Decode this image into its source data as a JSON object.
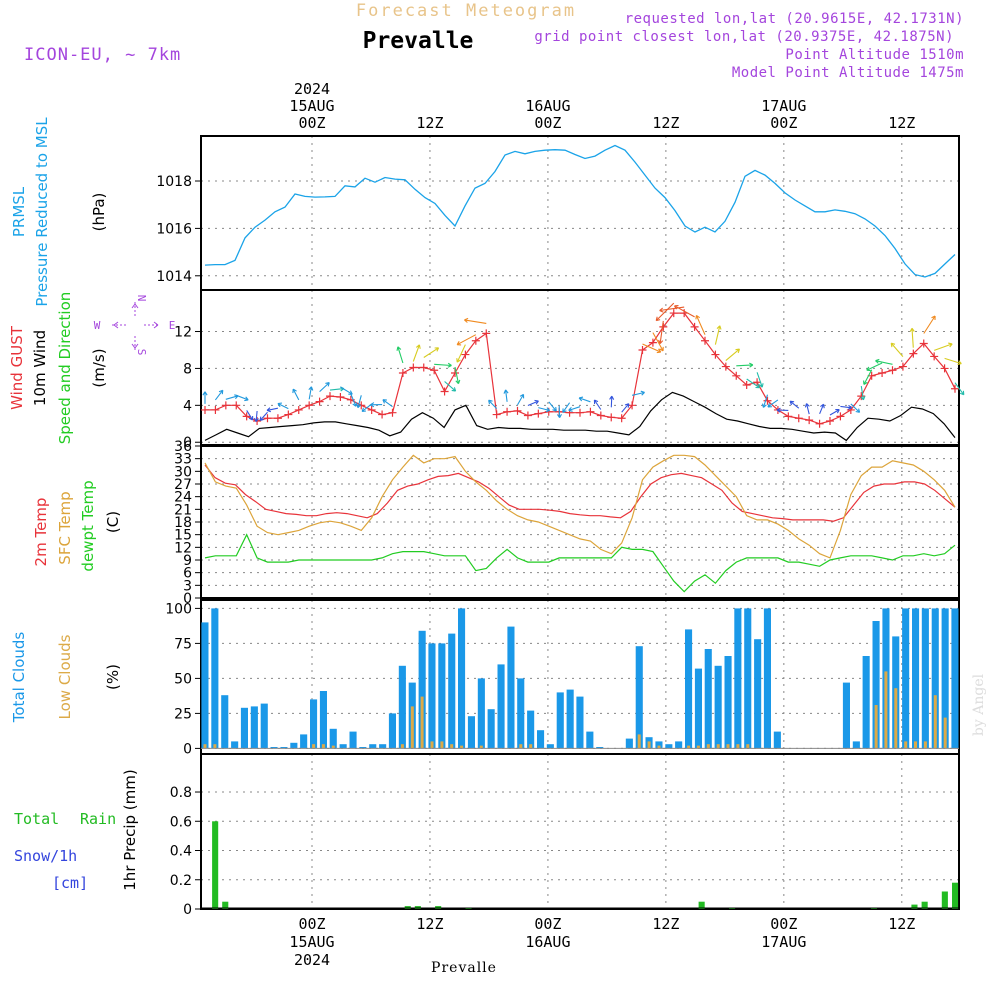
{
  "header": {
    "supertitle": "Forecast Meteogram",
    "place": "Prevalle",
    "model": "ICON-EU, ~ 7km",
    "requested": "requested lon,lat (20.9615E, 42.1731N)",
    "grid_point": "grid point closest lon,lat (20.9375E, 42.1875N)",
    "point_altitude": "Point Altitude 1510m",
    "model_altitude": "Model Point Altitude 1475m"
  },
  "footer": {
    "place": "Prevalle",
    "watermark": "by Angel"
  },
  "time_axis": {
    "top": [
      {
        "step": 0,
        "lines": [
          "2024",
          "15AUG",
          "00Z"
        ]
      },
      {
        "step": 12,
        "lines": [
          "12Z"
        ]
      },
      {
        "step": 24,
        "lines": [
          "16AUG",
          "00Z"
        ]
      },
      {
        "step": 36,
        "lines": [
          "12Z"
        ]
      },
      {
        "step": 48,
        "lines": [
          "17AUG",
          "00Z"
        ]
      },
      {
        "step": 60,
        "lines": [
          "12Z"
        ]
      }
    ],
    "bottom": [
      {
        "step": 0,
        "lines": [
          "00Z",
          "15AUG",
          "2024"
        ]
      },
      {
        "step": 12,
        "lines": [
          "12Z"
        ]
      },
      {
        "step": 24,
        "lines": [
          "00Z",
          "16AUG"
        ]
      },
      {
        "step": 36,
        "lines": [
          "12Z"
        ]
      },
      {
        "step": 48,
        "lines": [
          "00Z",
          "17AUG"
        ]
      },
      {
        "step": 60,
        "lines": [
          "12Z"
        ]
      }
    ]
  },
  "colors": {
    "pressure": "#1aa3e8",
    "gust": "#e8333a",
    "wind": "#000000",
    "sfc_temp": "#dca43a",
    "dewpoint": "#22cc22",
    "total_clouds": "#1a98e8",
    "low_clouds": "#dcaa48",
    "rain": "#22bb22",
    "snow": "#3344dd",
    "compass": "#a445dd",
    "title_gold": "#e8c48a",
    "watermark": "#dddddd"
  },
  "panels": {
    "pressure": {
      "labels": [
        "PRMSL",
        "Pressure Reduced to MSL",
        "(hPa)"
      ]
    },
    "wind": {
      "labels": [
        "Wind GUST",
        "10m Wind",
        "Speed and Direction",
        "(m/s)"
      ],
      "compass": [
        "N",
        "S",
        "W",
        "E"
      ]
    },
    "temp": {
      "labels": [
        "2m Temp",
        "SFC Temp",
        "dewpt Temp",
        "(C)"
      ]
    },
    "clouds": {
      "labels": [
        "Total Clouds",
        "Low Clouds",
        "(%)"
      ]
    },
    "precip": {
      "labels": [
        "Total",
        "Rain",
        "Snow/1h",
        "[cm]",
        "1hr Precip (mm)"
      ]
    }
  },
  "chart_data": [
    {
      "type": "line",
      "title": "PRMSL Pressure Reduced to MSL",
      "ylabel": "(hPa)",
      "x_start_hours_before_15AUG00Z": 9.5,
      "x_step_hours": 1,
      "ylim": [
        1013.4,
        1019.9
      ],
      "yticks": [
        1014,
        1016,
        1018
      ],
      "series": [
        {
          "name": "PRMSL",
          "values": [
            1014.45,
            1014.47,
            1014.47,
            1014.65,
            1015.6,
            1016.05,
            1016.35,
            1016.7,
            1016.9,
            1017.45,
            1017.35,
            1017.32,
            1017.33,
            1017.35,
            1017.8,
            1017.75,
            1018.12,
            1017.95,
            1018.15,
            1018.08,
            1018.05,
            1017.65,
            1017.3,
            1017.05,
            1016.55,
            1016.1,
            1016.95,
            1017.7,
            1017.9,
            1018.4,
            1019.1,
            1019.25,
            1019.15,
            1019.25,
            1019.3,
            1019.32,
            1019.3,
            1019.12,
            1018.95,
            1019.05,
            1019.3,
            1019.5,
            1019.3,
            1018.8,
            1018.25,
            1017.7,
            1017.3,
            1016.75,
            1016.1,
            1015.85,
            1016.05,
            1015.85,
            1016.3,
            1017.1,
            1018.2,
            1018.45,
            1018.25,
            1017.9,
            1017.5,
            1017.2,
            1016.95,
            1016.7,
            1016.7,
            1016.78,
            1016.72,
            1016.62,
            1016.4,
            1016.1,
            1015.7,
            1015.15,
            1014.5,
            1014.05,
            1013.95,
            1014.1,
            1014.5,
            1014.9
          ]
        }
      ]
    },
    {
      "type": "line",
      "title": "Wind GUST / 10m Wind Speed and Direction",
      "ylabel": "(m/s)",
      "ylim": [
        0,
        16
      ],
      "yticks": [
        0,
        4,
        8,
        12
      ],
      "series": [
        {
          "name": "Wind GUST",
          "values": [
            3.5,
            3.5,
            4.0,
            4.0,
            2.8,
            2.3,
            2.6,
            2.6,
            3.0,
            3.5,
            4.0,
            4.4,
            5.0,
            4.9,
            4.6,
            4.0,
            3.5,
            3.0,
            3.2,
            7.5,
            8.1,
            8.1,
            7.8,
            5.5,
            7.5,
            9.5,
            11.0,
            11.8,
            3.0,
            3.3,
            3.4,
            2.9,
            3.1,
            3.3,
            3.3,
            3.2,
            3.2,
            3.3,
            2.9,
            2.7,
            2.6,
            4.0,
            10.0,
            10.8,
            12.5,
            14.0,
            14.0,
            12.5,
            11.0,
            9.5,
            8.2,
            7.2,
            6.2,
            6.5,
            4.5,
            3.5,
            2.8,
            2.6,
            2.4,
            2.0,
            2.3,
            2.8,
            3.5,
            5.0,
            7.2,
            7.5,
            7.8,
            8.2,
            9.6,
            10.7,
            9.3,
            8.0,
            5.8
          ]
        },
        {
          "name": "10m Wind",
          "values": [
            0.2,
            0.8,
            1.4,
            1.0,
            0.6,
            1.5,
            1.6,
            1.7,
            1.8,
            1.9,
            2.1,
            2.2,
            2.2,
            2.0,
            1.8,
            1.6,
            1.3,
            0.7,
            1.1,
            2.5,
            3.2,
            2.6,
            1.6,
            3.5,
            4.0,
            1.8,
            1.4,
            1.6,
            1.5,
            1.5,
            1.4,
            1.4,
            1.4,
            1.3,
            1.3,
            1.3,
            1.2,
            1.2,
            1.0,
            0.8,
            1.7,
            3.4,
            4.6,
            5.4,
            5.0,
            4.4,
            3.8,
            3.1,
            2.5,
            2.3,
            2.0,
            1.7,
            1.5,
            1.5,
            1.4,
            1.2,
            1.0,
            1.1,
            1.0,
            0.2,
            1.6,
            2.6,
            2.5,
            2.3,
            2.9,
            3.8,
            3.6,
            3.1,
            2.0,
            0.5
          ]
        }
      ]
    },
    {
      "type": "line",
      "title": "2m Temp / SFC Temp / dewpt Temp",
      "ylabel": "(C)",
      "ylim": [
        0,
        36
      ],
      "yticks": [
        0,
        3,
        6,
        9,
        12,
        15,
        18,
        21,
        24,
        27,
        30,
        33,
        36
      ],
      "series": [
        {
          "name": "2m Temp",
          "values": [
            31.5,
            28.5,
            27.2,
            26.8,
            24.5,
            22.8,
            21.0,
            20.5,
            20.0,
            19.8,
            19.5,
            19.5,
            20.0,
            20.2,
            20.0,
            19.5,
            19.0,
            20.0,
            22.5,
            25.5,
            26.5,
            27.0,
            28.0,
            28.8,
            29.0,
            29.5,
            28.5,
            27.5,
            26.0,
            24.0,
            22.0,
            21.0,
            21.0,
            21.0,
            20.8,
            20.5,
            20.0,
            19.7,
            19.5,
            19.5,
            19.2,
            19.0,
            20.5,
            24.0,
            27.0,
            28.5,
            29.2,
            29.5,
            29.0,
            28.5,
            27.0,
            25.5,
            22.5,
            20.5,
            20.0,
            19.5,
            19.0,
            18.8,
            18.5,
            18.5,
            18.5,
            18.5,
            18.2,
            19.0,
            22.0,
            25.0,
            26.5,
            27.0,
            27.0,
            27.5,
            27.5,
            27.0,
            25.5,
            23.5,
            21.5
          ]
        },
        {
          "name": "SFC Temp",
          "values": [
            32.0,
            27.5,
            26.5,
            26.0,
            22.0,
            17.0,
            15.5,
            15.0,
            15.5,
            16.0,
            17.0,
            17.8,
            18.2,
            17.8,
            17.0,
            16.0,
            19.0,
            24.0,
            28.0,
            31.0,
            33.8,
            32.0,
            33.0,
            33.0,
            33.5,
            30.0,
            27.5,
            25.5,
            23.0,
            21.0,
            19.5,
            18.5,
            18.0,
            17.0,
            16.0,
            15.0,
            14.0,
            13.5,
            11.5,
            10.5,
            13.0,
            19.0,
            28.0,
            31.0,
            32.5,
            33.8,
            33.8,
            33.5,
            31.5,
            29.0,
            26.5,
            24.0,
            19.5,
            18.5,
            18.5,
            17.5,
            16.0,
            14.0,
            12.5,
            10.5,
            9.5,
            16.0,
            24.5,
            29.0,
            31.0,
            31.0,
            32.5,
            32.0,
            31.5,
            30.0,
            28.0,
            25.5,
            21.5
          ]
        },
        {
          "name": "dewpt Temp",
          "values": [
            9.5,
            10.0,
            10.0,
            10.0,
            15.0,
            9.5,
            8.5,
            8.5,
            8.5,
            9.0,
            9.0,
            9.0,
            9.0,
            9.0,
            9.0,
            9.0,
            9.0,
            9.5,
            10.5,
            11.0,
            11.0,
            11.0,
            10.5,
            10.0,
            10.0,
            10.0,
            6.5,
            7.0,
            9.5,
            11.5,
            9.5,
            8.5,
            8.5,
            8.5,
            9.5,
            9.5,
            9.5,
            9.5,
            9.5,
            9.5,
            12.0,
            11.5,
            11.5,
            11.0,
            7.5,
            4.0,
            1.5,
            4.0,
            5.5,
            3.5,
            6.5,
            8.5,
            9.5,
            9.5,
            9.5,
            9.5,
            8.5,
            8.5,
            8.0,
            7.5,
            9.0,
            9.5,
            10.0,
            10.0,
            10.0,
            9.5,
            9.0,
            10.0,
            10.0,
            10.5,
            10.0,
            10.5,
            12.5
          ]
        }
      ]
    },
    {
      "type": "bar",
      "title": "Total Clouds / Low Clouds",
      "ylabel": "(%)",
      "ylim": [
        0,
        100
      ],
      "yticks": [
        0,
        25,
        50,
        75,
        100
      ],
      "series": [
        {
          "name": "Total Clouds",
          "values": [
            90,
            100,
            38,
            5,
            29,
            30,
            32,
            1,
            1,
            4,
            10,
            35,
            41,
            14,
            3,
            12,
            1,
            3,
            3,
            25,
            59,
            47,
            84,
            75,
            75,
            82,
            100,
            23,
            50,
            28,
            60,
            87,
            50,
            27,
            13,
            3,
            40,
            42,
            37,
            12,
            1,
            0,
            0,
            7,
            73,
            8,
            5,
            3,
            5,
            85,
            57,
            71,
            59,
            66,
            100,
            100,
            78,
            100,
            12,
            0,
            0,
            0,
            0,
            0,
            0,
            47,
            5,
            66,
            91,
            100,
            80,
            100,
            100,
            100,
            100,
            100,
            100
          ]
        },
        {
          "name": "Low Clouds",
          "values": [
            3,
            3,
            0,
            0,
            0,
            0,
            0,
            0,
            0,
            0,
            0,
            3,
            3,
            2,
            0,
            0,
            0,
            0,
            0,
            0,
            3,
            30,
            37,
            5,
            5,
            3,
            2,
            0,
            2,
            0,
            0,
            0,
            3,
            3,
            0,
            0,
            0,
            0,
            0,
            0,
            0,
            0,
            0,
            0,
            10,
            5,
            2,
            0,
            0,
            2,
            2,
            3,
            3,
            3,
            3,
            3,
            0,
            0,
            0,
            0,
            0,
            0,
            0,
            0,
            0,
            0,
            0,
            0,
            31,
            55,
            43,
            5,
            5,
            5,
            38,
            22,
            0
          ]
        }
      ]
    },
    {
      "type": "bar",
      "title": "1hr Precip",
      "ylabel": "1hr Precip (mm)",
      "ylim": [
        0,
        1.0
      ],
      "yticks": [
        0,
        0.2,
        0.4,
        0.6,
        0.8
      ],
      "series": [
        {
          "name": "Total Rain",
          "values": [
            0,
            0.6,
            0.05,
            0,
            0,
            0,
            0,
            0,
            0,
            0,
            0,
            0,
            0,
            0,
            0,
            0,
            0,
            0,
            0,
            0,
            0.02,
            0.02,
            0,
            0.02,
            0,
            0,
            0.01,
            0,
            0,
            0,
            0,
            0,
            0,
            0,
            0,
            0,
            0,
            0,
            0,
            0,
            0,
            0,
            0,
            0,
            0,
            0,
            0,
            0,
            0,
            0.05,
            0,
            0,
            0.01,
            0,
            0,
            0,
            0,
            0,
            0,
            0,
            0,
            0,
            0,
            0,
            0,
            0,
            0.01,
            0,
            0,
            0,
            0.03,
            0.05,
            0,
            0.12,
            0.18
          ]
        },
        {
          "name": "Snow/1h",
          "values": []
        }
      ]
    }
  ]
}
